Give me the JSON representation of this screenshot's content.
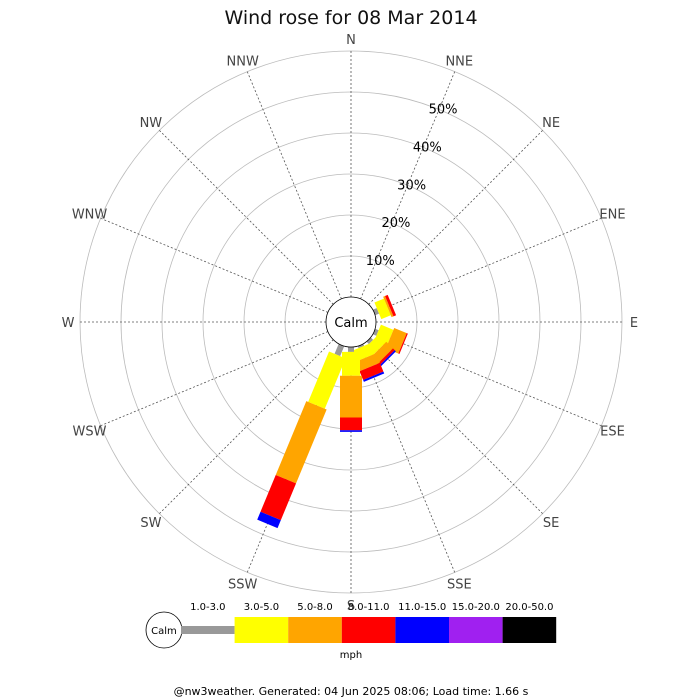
{
  "chart_data": {
    "type": "wind-rose",
    "title": "Wind rose for 08 Mar 2014",
    "directions": [
      "N",
      "NNE",
      "NE",
      "ENE",
      "E",
      "ESE",
      "SE",
      "SSE",
      "S",
      "SSW",
      "SW",
      "WSW",
      "W",
      "WNW",
      "NW",
      "NNW"
    ],
    "radial_ticks": [
      "10%",
      "20%",
      "30%",
      "40%",
      "50%"
    ],
    "radial_max": 60,
    "calm_label": "Calm",
    "speed_bins": [
      {
        "label": "1.0-3.0",
        "color": "#999999"
      },
      {
        "label": "3.0-5.0",
        "color": "#ffff00"
      },
      {
        "label": "5.0-8.0",
        "color": "#ffa500"
      },
      {
        "label": "8.0-11.0",
        "color": "#ff0000"
      },
      {
        "label": "11.0-15.0",
        "color": "#0000ff"
      },
      {
        "label": "15.0-20.0",
        "color": "#a020f0"
      },
      {
        "label": "20.0-50.0",
        "color": "#000000"
      }
    ],
    "units": "mph",
    "series": [
      {
        "direction": "N",
        "values": [
          0,
          0,
          0,
          0,
          0,
          0,
          0
        ]
      },
      {
        "direction": "NNE",
        "values": [
          0,
          0,
          0,
          0,
          0,
          0,
          0
        ]
      },
      {
        "direction": "NE",
        "values": [
          0,
          0,
          0,
          0,
          0,
          0,
          0
        ]
      },
      {
        "direction": "ENE",
        "values": [
          1.0,
          2.5,
          0.5,
          0.7,
          0,
          0,
          0
        ]
      },
      {
        "direction": "E",
        "values": [
          0,
          0,
          0,
          0,
          0,
          0,
          0
        ]
      },
      {
        "direction": "ESE",
        "values": [
          0.9,
          3.3,
          3.3,
          0.3,
          0,
          0,
          0
        ]
      },
      {
        "direction": "SE",
        "values": [
          0.8,
          2.6,
          2.3,
          0.6,
          0.4,
          0,
          0
        ]
      },
      {
        "direction": "SSE",
        "values": [
          0.5,
          2.8,
          2.5,
          2.3,
          0.5,
          0,
          0
        ]
      },
      {
        "direction": "S",
        "values": [
          1.2,
          5.8,
          10.2,
          3.1,
          0.4,
          0,
          0
        ]
      },
      {
        "direction": "SSW",
        "values": [
          2.6,
          13.3,
          19.5,
          9.7,
          2.1,
          0,
          0
        ]
      },
      {
        "direction": "SW",
        "values": [
          0,
          0,
          0,
          0,
          0,
          0,
          0
        ]
      },
      {
        "direction": "WSW",
        "values": [
          0,
          0,
          0,
          0,
          0,
          0,
          0
        ]
      },
      {
        "direction": "W",
        "values": [
          0,
          0,
          0,
          0,
          0,
          0,
          0
        ]
      },
      {
        "direction": "WNW",
        "values": [
          0,
          0,
          0,
          0,
          0,
          0,
          0
        ]
      },
      {
        "direction": "NW",
        "values": [
          0,
          0,
          0,
          0,
          0,
          0,
          0
        ]
      },
      {
        "direction": "NNW",
        "values": [
          0,
          0,
          0,
          0,
          0,
          0,
          0
        ]
      }
    ],
    "footer": "@nw3weather. Generated: 04 Jun 2025 08:06; Load time: 1.66 s"
  }
}
